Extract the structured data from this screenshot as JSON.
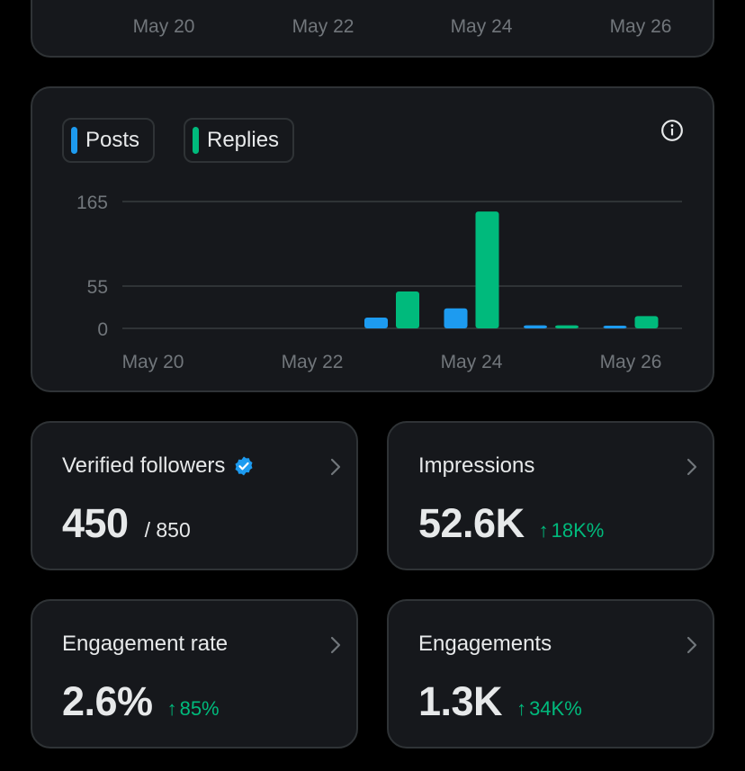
{
  "top_axis": {
    "x_labels": [
      "May 20",
      "May 22",
      "May 24",
      "May 26"
    ]
  },
  "legend": {
    "posts": {
      "label": "Posts",
      "color": "#1d9bf0"
    },
    "replies": {
      "label": "Replies",
      "color": "#00ba7c"
    }
  },
  "icons": {
    "info": "info-icon",
    "chevron": "chevron-right-icon",
    "verified": "verified-badge-icon",
    "arrow": "arrow-up-icon"
  },
  "chart_data": {
    "type": "bar",
    "categories": [
      "May 20",
      "May 21",
      "May 22",
      "May 23",
      "May 24",
      "May 25",
      "May 26"
    ],
    "series": [
      {
        "name": "Posts",
        "color": "#1d9bf0",
        "values": [
          0,
          0,
          0,
          14,
          26,
          4,
          2
        ]
      },
      {
        "name": "Replies",
        "color": "#00ba7c",
        "values": [
          0,
          0,
          0,
          48,
          152,
          4,
          16
        ]
      }
    ],
    "y_ticks": [
      "165",
      "55",
      "0"
    ],
    "y_tick_values": [
      165,
      55,
      0
    ],
    "ylim": [
      0,
      165
    ],
    "x_labels": [
      "May 20",
      "May 22",
      "May 24",
      "May 26"
    ],
    "grid": true
  },
  "stats": {
    "verified_followers": {
      "title": "Verified followers",
      "value": "450",
      "sub": "/ 850"
    },
    "impressions": {
      "title": "Impressions",
      "value": "52.6K",
      "arrow": "↑",
      "change": "18K%"
    },
    "engagement_rate": {
      "title": "Engagement rate",
      "value": "2.6%",
      "arrow": "↑",
      "change": "85%"
    },
    "engagements": {
      "title": "Engagements",
      "value": "1.3K",
      "arrow": "↑",
      "change": "34K%"
    }
  },
  "colors": {
    "positive": "#00ba7c",
    "verified": "#1d9bf0"
  }
}
